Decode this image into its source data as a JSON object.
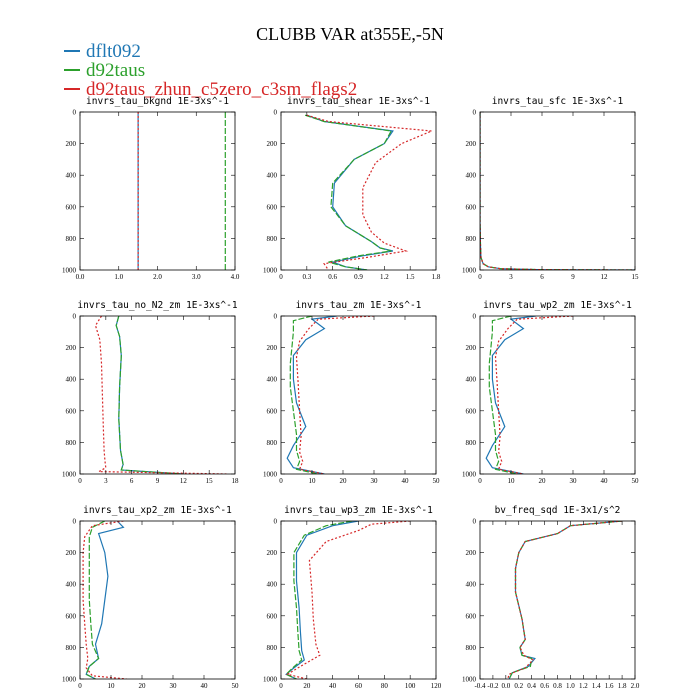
{
  "figure": {
    "title": "CLUBB VAR at355E,-5N"
  },
  "legend": [
    {
      "name": "dflt092",
      "color": "#1f77b4"
    },
    {
      "name": "d92taus",
      "color": "#2ca02c"
    },
    {
      "name": "d92taus_zhun_c5zero_c3sm_flags2",
      "color": "#d62728"
    }
  ],
  "chart_data": [
    {
      "type": "line",
      "title": "invrs_tau_bkgnd   1E-3xs^-1",
      "xlim": [
        0,
        4
      ],
      "xticks": [
        0.0,
        1.0,
        2.0,
        3.0,
        4.0
      ],
      "xtick_labels": [
        "0.0",
        "1.0",
        "2.0",
        "3.0",
        "4.0"
      ],
      "ylim": [
        1000,
        0
      ],
      "yticks": [
        0,
        200,
        400,
        600,
        800,
        1000
      ],
      "series": [
        {
          "name": "dflt092",
          "x": [
            1.5,
            1.5
          ],
          "y": [
            0,
            1000
          ]
        },
        {
          "name": "d92taus",
          "x": [
            3.75,
            3.75
          ],
          "y": [
            0,
            1000
          ]
        },
        {
          "name": "d92taus_zhun_c5zero_c3sm_flags2",
          "x": [
            1.5,
            1.5
          ],
          "y": [
            0,
            1000
          ]
        }
      ]
    },
    {
      "type": "line",
      "title": "invrs_tau_shear   1E-3xs^-1",
      "xlim": [
        0,
        1.8
      ],
      "xticks": [
        0,
        0.3,
        0.6,
        0.9,
        1.2,
        1.5,
        1.8
      ],
      "xtick_labels": [
        "0",
        "0.3",
        "0.6",
        "0.9",
        "1.2",
        "1.5",
        "1.8"
      ],
      "ylim": [
        1000,
        0
      ],
      "yticks": [
        0,
        200,
        400,
        600,
        800,
        1000
      ],
      "series": [
        {
          "name": "dflt092",
          "x": [
            0.3,
            0.5,
            1.3,
            1.2,
            0.85,
            0.62,
            0.6,
            0.75,
            1.05,
            1.15,
            1.3,
            0.95,
            0.6,
            0.75,
            1.0
          ],
          "y": [
            20,
            60,
            120,
            200,
            300,
            450,
            600,
            720,
            820,
            860,
            880,
            910,
            950,
            980,
            1000
          ]
        },
        {
          "name": "d92taus",
          "x": [
            0.28,
            0.5,
            1.28,
            1.2,
            0.85,
            0.6,
            0.58,
            0.75,
            1.05,
            1.15,
            1.28,
            0.9,
            0.55,
            0.75,
            1.0
          ],
          "y": [
            20,
            60,
            120,
            200,
            300,
            450,
            600,
            720,
            820,
            860,
            880,
            910,
            950,
            980,
            1000
          ]
        },
        {
          "name": "d92taus_zhun_c5zero_c3sm_flags2",
          "x": [
            0.3,
            0.55,
            1.75,
            1.4,
            1.1,
            0.95,
            0.95,
            1.05,
            1.2,
            1.35,
            1.45,
            1.0,
            0.5,
            0.55
          ],
          "y": [
            20,
            60,
            120,
            200,
            320,
            480,
            650,
            760,
            830,
            860,
            880,
            920,
            960,
            1000
          ]
        }
      ]
    },
    {
      "type": "line",
      "title": "invrs_tau_sfc   1E-3xs^-1",
      "xlim": [
        0,
        15
      ],
      "xticks": [
        0,
        3,
        6,
        9,
        12,
        15
      ],
      "xtick_labels": [
        "0",
        "3",
        "6",
        "9",
        "12",
        "15"
      ],
      "ylim": [
        1000,
        0
      ],
      "yticks": [
        0,
        200,
        400,
        600,
        800,
        1000
      ],
      "series": [
        {
          "name": "dflt092",
          "x": [
            0,
            0,
            0.05,
            0.1,
            0.3,
            0.8,
            2,
            6,
            15
          ],
          "y": [
            0,
            700,
            850,
            920,
            960,
            980,
            992,
            998,
            1000
          ]
        },
        {
          "name": "d92taus",
          "x": [
            0,
            0,
            0.05,
            0.1,
            0.3,
            0.8,
            2,
            6,
            15
          ],
          "y": [
            0,
            700,
            850,
            920,
            960,
            980,
            992,
            998,
            1000
          ]
        },
        {
          "name": "d92taus_zhun_c5zero_c3sm_flags2",
          "x": [
            0,
            0,
            0.05,
            0.1,
            0.3,
            0.8,
            2,
            6,
            15
          ],
          "y": [
            0,
            700,
            850,
            920,
            960,
            980,
            992,
            998,
            1000
          ]
        }
      ]
    },
    {
      "type": "line",
      "title": "invrs_tau_no_N2_zm   1E-3xs^-1",
      "xlim": [
        0,
        18
      ],
      "xticks": [
        0,
        3,
        6,
        9,
        12,
        15,
        18
      ],
      "xtick_labels": [
        "0",
        "3",
        "6",
        "9",
        "12",
        "15",
        "18"
      ],
      "ylim": [
        1000,
        0
      ],
      "yticks": [
        0,
        200,
        400,
        600,
        800,
        1000
      ],
      "series": [
        {
          "name": "dflt092",
          "x": [
            4.5,
            4.2,
            4.6,
            4.8,
            4.6,
            4.5,
            4.7,
            5.0,
            4.8,
            12
          ],
          "y": [
            0,
            60,
            130,
            250,
            450,
            650,
            850,
            940,
            975,
            1000
          ]
        },
        {
          "name": "d92taus",
          "x": [
            4.5,
            4.2,
            4.6,
            4.8,
            4.6,
            4.5,
            4.7,
            5.0,
            4.8,
            12
          ],
          "y": [
            0,
            60,
            130,
            250,
            450,
            650,
            850,
            940,
            975,
            1000
          ]
        },
        {
          "name": "d92taus_zhun_c5zero_c3sm_flags2",
          "x": [
            2.5,
            1.8,
            2.3,
            2.5,
            2.6,
            2.7,
            2.8,
            2.9,
            3.0,
            2.2,
            17
          ],
          "y": [
            0,
            60,
            150,
            300,
            500,
            700,
            850,
            920,
            960,
            985,
            1000
          ]
        }
      ]
    },
    {
      "type": "line",
      "title": "invrs_tau_zm   1E-3xs^-1",
      "xlim": [
        0,
        50
      ],
      "xticks": [
        0,
        10,
        20,
        30,
        40,
        50
      ],
      "xtick_labels": [
        "0",
        "10",
        "20",
        "30",
        "40",
        "50"
      ],
      "ylim": [
        1000,
        0
      ],
      "yticks": [
        0,
        200,
        400,
        600,
        800,
        1000
      ],
      "series": [
        {
          "name": "dflt092",
          "x": [
            18,
            10,
            14,
            8,
            4,
            4,
            5,
            8,
            4,
            2,
            4,
            14
          ],
          "y": [
            0,
            20,
            80,
            150,
            250,
            400,
            550,
            700,
            820,
            900,
            960,
            1000
          ]
        },
        {
          "name": "d92taus",
          "x": [
            10,
            4,
            4,
            3.5,
            3,
            3,
            4,
            5,
            5,
            6,
            5,
            12
          ],
          "y": [
            0,
            30,
            100,
            200,
            300,
            450,
            600,
            750,
            850,
            920,
            970,
            1000
          ]
        },
        {
          "name": "d92taus_zhun_c5zero_c3sm_flags2",
          "x": [
            30,
            12,
            9,
            6,
            5,
            5.5,
            6,
            6.5,
            6,
            7,
            6,
            14
          ],
          "y": [
            0,
            20,
            80,
            160,
            260,
            420,
            600,
            760,
            860,
            920,
            970,
            1000
          ]
        }
      ]
    },
    {
      "type": "line",
      "title": "invrs_tau_wp2_zm   1E-3xs^-1",
      "xlim": [
        0,
        50
      ],
      "xticks": [
        0,
        10,
        20,
        30,
        40,
        50
      ],
      "xtick_labels": [
        "0",
        "10",
        "20",
        "30",
        "40",
        "50"
      ],
      "ylim": [
        1000,
        0
      ],
      "yticks": [
        0,
        200,
        400,
        600,
        800,
        1000
      ],
      "series": [
        {
          "name": "dflt092",
          "x": [
            18,
            10,
            14,
            8,
            4,
            4,
            5,
            8,
            4,
            2,
            4,
            14
          ],
          "y": [
            0,
            20,
            80,
            150,
            250,
            400,
            550,
            700,
            820,
            900,
            960,
            1000
          ]
        },
        {
          "name": "d92taus",
          "x": [
            10,
            4,
            4,
            3.5,
            3,
            3,
            4,
            5,
            5,
            6,
            5,
            12
          ],
          "y": [
            0,
            30,
            100,
            200,
            300,
            450,
            600,
            750,
            850,
            920,
            970,
            1000
          ]
        },
        {
          "name": "d92taus_zhun_c5zero_c3sm_flags2",
          "x": [
            30,
            12,
            9,
            6,
            5,
            5.5,
            6,
            6.5,
            6,
            7,
            6,
            14
          ],
          "y": [
            0,
            20,
            80,
            160,
            260,
            420,
            600,
            760,
            860,
            920,
            970,
            1000
          ]
        }
      ]
    },
    {
      "type": "line",
      "title": "invrs_tau_xp2_zm   1E-3xs^-1",
      "xlim": [
        0,
        50
      ],
      "xticks": [
        0,
        10,
        20,
        30,
        40,
        50
      ],
      "xtick_labels": [
        "0",
        "10",
        "20",
        "30",
        "40",
        "50"
      ],
      "ylim": [
        1000,
        0
      ],
      "yticks": [
        0,
        200,
        400,
        600,
        800,
        1000
      ],
      "series": [
        {
          "name": "dflt092",
          "x": [
            12,
            14,
            6,
            8,
            9,
            8,
            7,
            5,
            6,
            3,
            2,
            5
          ],
          "y": [
            0,
            40,
            80,
            200,
            350,
            500,
            650,
            780,
            870,
            920,
            970,
            1000
          ]
        },
        {
          "name": "d92taus",
          "x": [
            8,
            4,
            3,
            3,
            3,
            3,
            3.5,
            4,
            6,
            3,
            2,
            5
          ],
          "y": [
            0,
            40,
            100,
            200,
            350,
            500,
            650,
            780,
            870,
            920,
            970,
            1000
          ]
        },
        {
          "name": "d92taus_zhun_c5zero_c3sm_flags2",
          "x": [
            14,
            4,
            1.5,
            1,
            1,
            1,
            1.5,
            2,
            2.5,
            2,
            4,
            15
          ],
          "y": [
            0,
            30,
            100,
            200,
            350,
            500,
            650,
            780,
            870,
            930,
            980,
            1000
          ]
        }
      ]
    },
    {
      "type": "line",
      "title": "invrs_tau_wp3_zm   1E-3xs^-1",
      "xlim": [
        0,
        120
      ],
      "xticks": [
        0,
        20,
        40,
        60,
        80,
        100,
        120
      ],
      "xtick_labels": [
        "0",
        "20",
        "40",
        "60",
        "80",
        "100",
        "120"
      ],
      "ylim": [
        1000,
        0
      ],
      "yticks": [
        0,
        200,
        400,
        600,
        800,
        1000
      ],
      "series": [
        {
          "name": "dflt092",
          "x": [
            60,
            40,
            20,
            12,
            12,
            14,
            15,
            16,
            18,
            10,
            4,
            12
          ],
          "y": [
            0,
            30,
            90,
            200,
            380,
            550,
            700,
            820,
            880,
            930,
            970,
            1000
          ]
        },
        {
          "name": "d92taus",
          "x": [
            55,
            35,
            18,
            10,
            10,
            12,
            13,
            14,
            16,
            9,
            4,
            12
          ],
          "y": [
            0,
            30,
            90,
            200,
            380,
            550,
            700,
            820,
            880,
            930,
            970,
            1000
          ]
        },
        {
          "name": "d92taus_zhun_c5zero_c3sm_flags2",
          "x": [
            100,
            70,
            60,
            35,
            22,
            24,
            25,
            27,
            30,
            15,
            5,
            20
          ],
          "y": [
            0,
            20,
            60,
            130,
            250,
            450,
            620,
            780,
            850,
            920,
            970,
            1000
          ]
        }
      ]
    },
    {
      "type": "line",
      "title": "bv_freq_sqd   1E-3x1/s^2",
      "xlim": [
        -0.4,
        2.0
      ],
      "xticks": [
        -0.4,
        -0.2,
        0.0,
        0.2,
        0.4,
        0.6,
        0.8,
        1.0,
        1.2,
        1.4,
        1.6,
        1.8,
        2.0
      ],
      "xtick_labels": [
        "-0.4",
        "-0.2",
        "0.0",
        "0.2",
        "0.4",
        "0.6",
        "0.8",
        "1.0",
        "1.2",
        "1.4",
        "1.6",
        "1.8",
        "2.0"
      ],
      "ylim": [
        1000,
        0
      ],
      "yticks": [
        0,
        200,
        400,
        600,
        800,
        1000
      ],
      "series": [
        {
          "name": "dflt092",
          "x": [
            1.8,
            1.0,
            0.8,
            0.3,
            0.2,
            0.15,
            0.15,
            0.25,
            0.3,
            0.22,
            0.25,
            0.45,
            0.35,
            0.1,
            0.05
          ],
          "y": [
            0,
            30,
            80,
            130,
            200,
            300,
            450,
            620,
            750,
            800,
            850,
            870,
            920,
            960,
            1000
          ]
        },
        {
          "name": "d92taus",
          "x": [
            1.8,
            1.0,
            0.8,
            0.3,
            0.2,
            0.15,
            0.15,
            0.25,
            0.3,
            0.22,
            0.25,
            0.4,
            0.38,
            0.1,
            0.05
          ],
          "y": [
            0,
            30,
            80,
            130,
            200,
            300,
            450,
            620,
            750,
            800,
            850,
            870,
            920,
            960,
            1000
          ]
        },
        {
          "name": "d92taus_zhun_c5zero_c3sm_flags2",
          "x": [
            1.8,
            1.0,
            0.8,
            0.3,
            0.2,
            0.15,
            0.15,
            0.25,
            0.3,
            0.22,
            0.28,
            0.42,
            0.3,
            0.05,
            0.03
          ],
          "y": [
            0,
            30,
            80,
            130,
            200,
            300,
            450,
            620,
            750,
            800,
            850,
            880,
            930,
            970,
            1000
          ]
        }
      ]
    }
  ]
}
